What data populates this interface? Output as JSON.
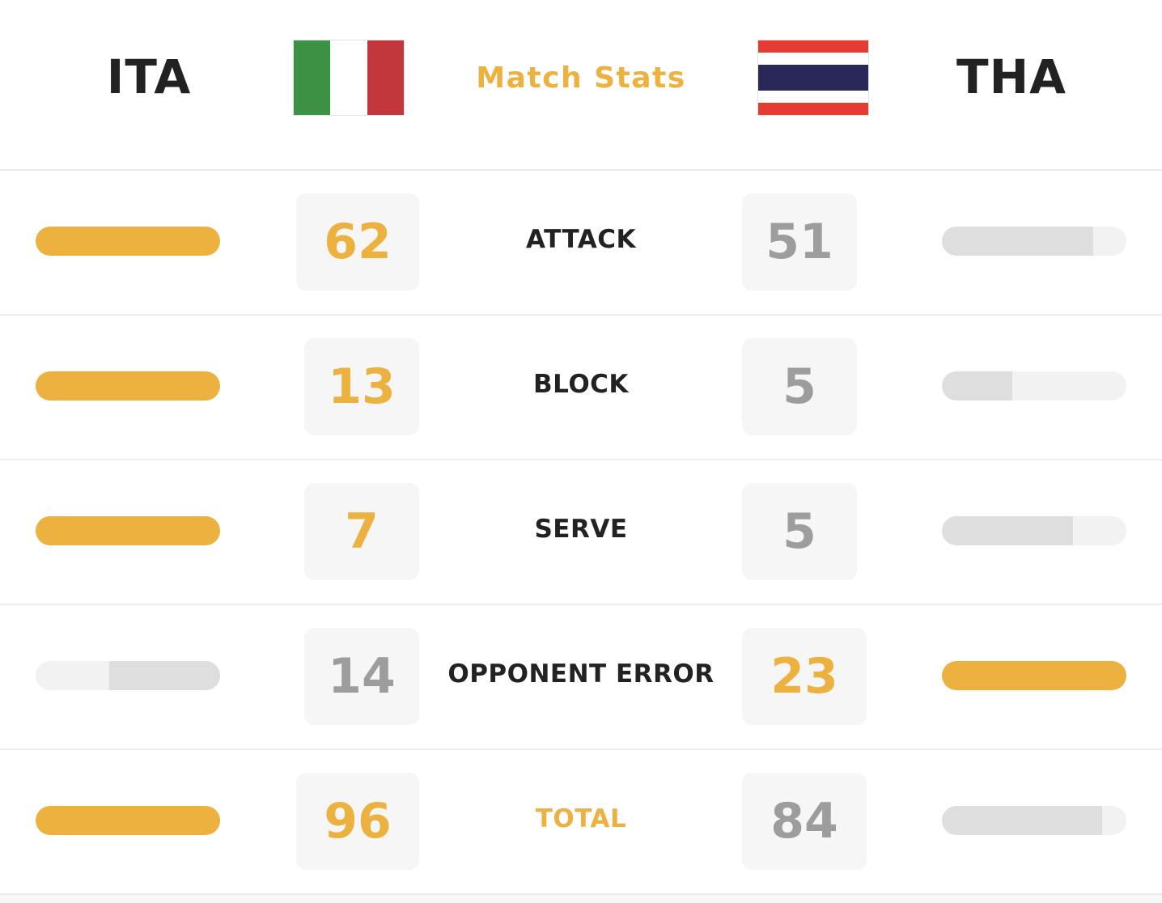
{
  "header": {
    "home_code": "ITA",
    "away_code": "THA",
    "title": "Match Stats",
    "title_color": "#ecb13f",
    "home_flag": {
      "name": "italy-flag",
      "colors": [
        "#3c9144",
        "#ffffff",
        "#c1373b"
      ]
    },
    "away_flag": {
      "name": "thailand-flag",
      "colors": [
        "#e53b30",
        "#ffffff",
        "#2a2858",
        "#ffffff",
        "#e53b30"
      ]
    }
  },
  "accent_color": "#ecb13f",
  "muted_color": "#9d9d9d",
  "stats": [
    {
      "label": "ATTACK",
      "home": "62",
      "away": "51",
      "leader": "home",
      "trailer_fill_pct": 82
    },
    {
      "label": "BLOCK",
      "home": "13",
      "away": "5",
      "leader": "home",
      "trailer_fill_pct": 38
    },
    {
      "label": "SERVE",
      "home": "7",
      "away": "5",
      "leader": "home",
      "trailer_fill_pct": 71
    },
    {
      "label": "OPPONENT ERROR",
      "home": "14",
      "away": "23",
      "leader": "away",
      "trailer_fill_pct": 60
    },
    {
      "label": "TOTAL",
      "home": "96",
      "away": "84",
      "leader": "home",
      "trailer_fill_pct": 87,
      "highlight": true
    }
  ]
}
